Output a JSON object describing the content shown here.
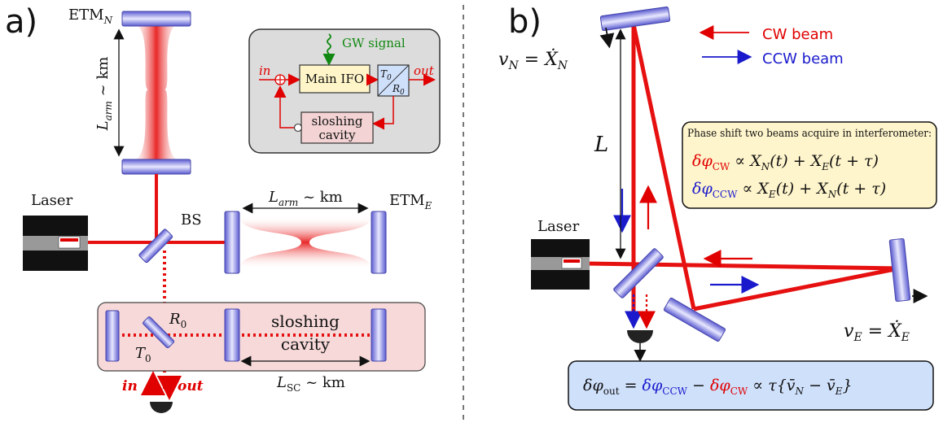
{
  "panel_a": {
    "label": "a)",
    "etm_n": "ETM",
    "etm_n_sub": "N",
    "etm_e": "ETM",
    "etm_e_sub": "E",
    "l_arm_vertical": "L",
    "l_arm_vertical_sub": "arm",
    "l_arm_vertical_rest": " ~ km",
    "l_arm_horizontal": "L",
    "l_arm_horizontal_sub": "arm",
    "l_arm_horizontal_rest": " ~ km",
    "laser": "Laser",
    "bs": "BS",
    "r0": "R",
    "r0_sub": "0",
    "t0": "T",
    "t0_sub": "0",
    "sloshing_line1": "sloshing",
    "sloshing_line2": "cavity",
    "l_sc": "L",
    "l_sc_sub": "SC",
    "l_sc_rest": " ~ km",
    "in_label": "in",
    "out_label": "out",
    "inset": {
      "gw_signal": "GW signal",
      "in_label": "in",
      "out_label": "out",
      "main_ifo": "Main IFO",
      "t0": "T",
      "t0_sub": "0",
      "r0": "R",
      "r0_sub": "0",
      "sloshing_line1": "sloshing",
      "sloshing_line2": "cavity"
    }
  },
  "panel_b": {
    "label": "b)",
    "legend_cw": "CW beam",
    "legend_ccw": "CCW beam",
    "v_n": "v",
    "v_n_sub": "N",
    "v_n_rest": " = Ẋ",
    "v_n_rest_sub": "N",
    "v_e": "v",
    "v_e_sub": "E",
    "v_e_rest": " = Ẋ",
    "v_e_rest_sub": "E",
    "l_label": "L",
    "laser": "Laser",
    "phase_note": "Phase shift two beams acquire in interferometer:",
    "eq_cw_lhs": "δφ",
    "eq_cw_sub": "CW",
    "eq_cw_rhs": " ∝ X",
    "eq_cw_rhs_sub1": "N",
    "eq_cw_rhs_mid": "(t) + X",
    "eq_cw_rhs_sub2": "E",
    "eq_cw_rhs_end": "(t + τ)",
    "eq_ccw_lhs": "δφ",
    "eq_ccw_sub": "CCW",
    "eq_ccw_rhs": " ∝ X",
    "eq_ccw_rhs_sub1": "E",
    "eq_ccw_rhs_mid": "(t) + X",
    "eq_ccw_rhs_sub2": "N",
    "eq_ccw_rhs_end": "(t + τ)",
    "out_lhs": "δφ",
    "out_lhs_sub": "out",
    "out_eq": " = ",
    "out_ccw": "δφ",
    "out_ccw_sub": "CCW",
    "out_minus": " − ",
    "out_cw": "δφ",
    "out_cw_sub": "CW",
    "out_rest": " ∝ τ{v̄",
    "out_rest_sub1": "N",
    "out_rest_mid": " − v̄",
    "out_rest_sub2": "E",
    "out_rest_end": "}"
  },
  "colors": {
    "beam_red": "#e61010",
    "ccw_blue": "#1a1acc",
    "mirror_blue": "#8a8ae6",
    "sloshing_fill": "#f7d9d9",
    "inset_fill": "#dcdcdc",
    "ifo_fill": "#fff5c8",
    "note_fill": "#fff5cc",
    "output_fill": "#cfe0fb"
  }
}
